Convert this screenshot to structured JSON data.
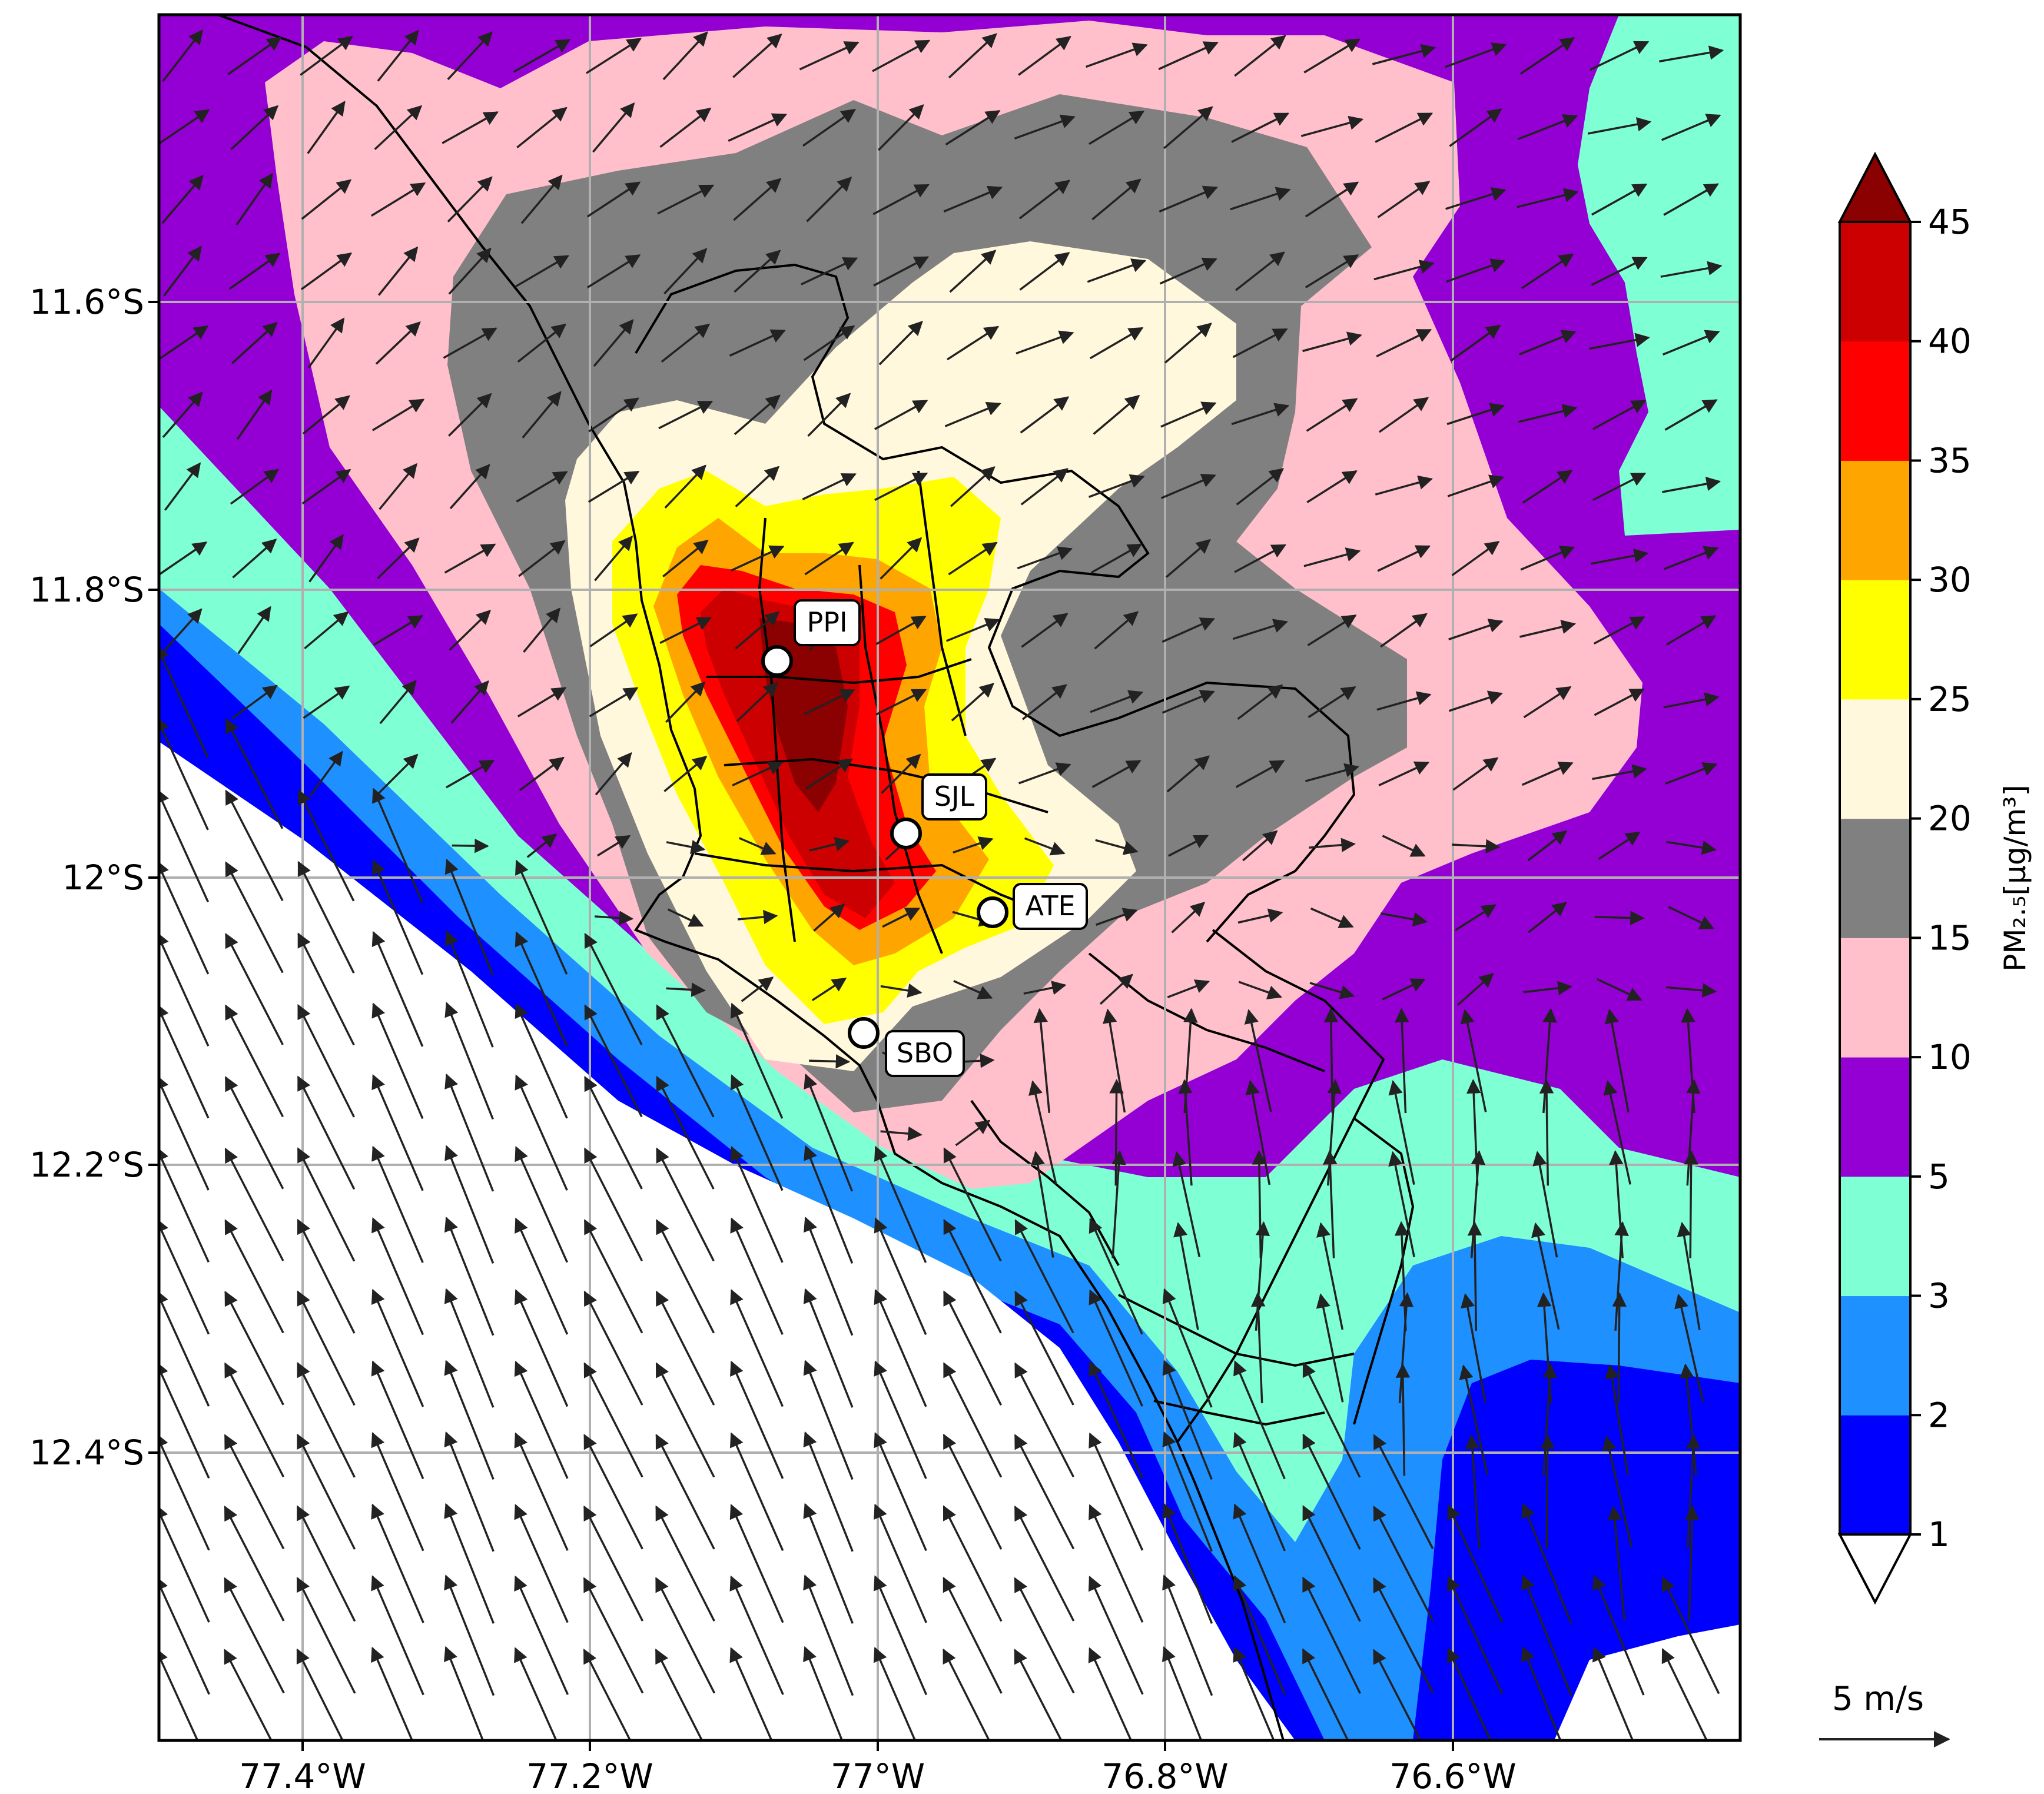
{
  "map": {
    "x_ticks": [
      "77.4°W",
      "77.2°W",
      "77°W",
      "76.8°W",
      "76.6°W"
    ],
    "y_ticks": [
      "11.6°S",
      "11.8°S",
      "12°S",
      "12.2°S",
      "12.4°S"
    ],
    "x_tick_values": [
      -77.4,
      -77.2,
      -77.0,
      -76.8,
      -76.6
    ],
    "y_tick_values": [
      -11.6,
      -11.8,
      -12.0,
      -12.2,
      -12.4
    ],
    "lon_range": [
      -77.5,
      -76.4
    ],
    "lat_range": [
      -12.6,
      -11.4
    ],
    "grid": true
  },
  "stations": [
    {
      "label": "PPI",
      "lon": -77.07,
      "lat": -11.85
    },
    {
      "label": "SJL",
      "lon": -76.98,
      "lat": -11.97
    },
    {
      "label": "ATE",
      "lon": -76.92,
      "lat": -12.03
    },
    {
      "label": "SBO",
      "lon": -77.01,
      "lat": -12.11
    }
  ],
  "colorbar": {
    "title": "PM₂.₅[μg/m³]",
    "ticks": [
      "1",
      "2",
      "3",
      "5",
      "10",
      "15",
      "20",
      "25",
      "30",
      "35",
      "40",
      "45"
    ],
    "bands": [
      {
        "range": "1-2",
        "color": "#0000ff"
      },
      {
        "range": "2-3",
        "color": "#1e90ff"
      },
      {
        "range": "3-5",
        "color": "#7fffd4"
      },
      {
        "range": "5-10",
        "color": "#9400d3"
      },
      {
        "range": "10-15",
        "color": "#ffc0cb"
      },
      {
        "range": "15-20",
        "color": "#808080"
      },
      {
        "range": "20-25",
        "color": "#fff8dc"
      },
      {
        "range": "25-30",
        "color": "#ffff00"
      },
      {
        "range": "30-35",
        "color": "#ffa500"
      },
      {
        "range": "35-40",
        "color": "#ff0000"
      },
      {
        "range": "40-45",
        "color": "#cc0000"
      }
    ],
    "under_color": "#ffffff",
    "over_color": "#8b0000",
    "extend": "both"
  },
  "reference_vector": {
    "label": "5 m/s",
    "speed": 5
  }
}
